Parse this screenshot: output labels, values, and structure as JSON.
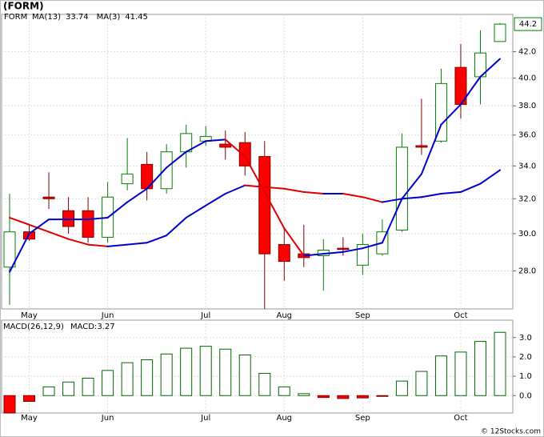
{
  "chart_data": [
    {
      "type": "candlestick",
      "title": "(FORM)",
      "symbol": "FORM",
      "categories": [
        null,
        "May",
        null,
        null,
        null,
        "Jun",
        null,
        null,
        null,
        null,
        "Jul",
        null,
        null,
        null,
        "Aug",
        null,
        null,
        null,
        "Sep",
        null,
        null,
        null,
        null,
        "Oct",
        null,
        null
      ],
      "open": [
        28.2,
        30.1,
        32.1,
        31.3,
        31.3,
        29.8,
        32.9,
        34.1,
        32.6,
        34.9,
        35.6,
        35.4,
        35.5,
        34.6,
        29.4,
        28.9,
        28.8,
        29.2,
        28.3,
        28.9,
        30.2,
        35.3,
        35.6,
        40.8,
        40.1,
        42.8
      ],
      "high": [
        32.3,
        30.5,
        33.6,
        32.1,
        32.1,
        33.0,
        35.8,
        34.9,
        35.4,
        36.7,
        36.6,
        36.3,
        36.2,
        35.6,
        30.3,
        30.5,
        29.7,
        29.8,
        30.0,
        30.8,
        36.1,
        38.5,
        40.7,
        42.6,
        43.7,
        44.3
      ],
      "low": [
        26.3,
        29.6,
        31.4,
        30.0,
        29.5,
        29.5,
        32.5,
        31.9,
        32.3,
        33.9,
        35.3,
        34.4,
        33.4,
        26.1,
        27.5,
        28.2,
        27.0,
        28.8,
        27.8,
        28.8,
        30.1,
        34.7,
        35.5,
        37.1,
        38.1,
        42.8
      ],
      "close": [
        30.1,
        29.7,
        32.0,
        30.4,
        29.8,
        32.1,
        33.5,
        32.6,
        34.9,
        36.1,
        35.9,
        35.2,
        34.0,
        28.9,
        28.5,
        28.7,
        29.1,
        29.15,
        29.4,
        30.1,
        35.2,
        35.2,
        39.6,
        38.1,
        41.9,
        44.2
      ],
      "up_color": "#008000",
      "down_color": "#ff0000",
      "series": [
        {
          "name": "MA(13)",
          "color": "#0000cc",
          "values": [
            30.9,
            30.5,
            30.1,
            29.7,
            29.4,
            29.3,
            29.4,
            29.5,
            29.9,
            30.9,
            31.6,
            32.3,
            32.8,
            32.7,
            32.6,
            32.4,
            32.3,
            32.3,
            32.1,
            31.8,
            32.0,
            32.1,
            32.3,
            32.4,
            32.9,
            33.74
          ]
        },
        {
          "name": "MA(3)",
          "color": "#0000cc",
          "values": [
            27.95,
            30.0,
            30.8,
            30.8,
            30.8,
            30.9,
            31.8,
            32.6,
            33.9,
            34.9,
            35.6,
            35.7,
            34.6,
            32.4,
            30.3,
            28.8,
            28.9,
            29.0,
            29.2,
            29.5,
            32.0,
            33.5,
            36.7,
            38.1,
            40.1,
            41.45
          ]
        }
      ],
      "falling_color": "#dd0000",
      "ylim": [
        26.1,
        45
      ],
      "log_scale": true,
      "grid": true,
      "yticks": [
        {
          "value": 28,
          "label": "28.0"
        },
        {
          "value": 30,
          "label": "30.0"
        },
        {
          "value": 32,
          "label": "32.0"
        },
        {
          "value": 34,
          "label": "34.0"
        },
        {
          "value": 36,
          "label": "36.0"
        },
        {
          "value": 38,
          "label": "38.0"
        },
        {
          "value": 40,
          "label": "40.0"
        },
        {
          "value": 42,
          "label": "42.0"
        }
      ]
    },
    {
      "type": "bar",
      "title": "MACD(26,12,9)",
      "value_name": "MACD:",
      "categories": [
        null,
        "May",
        null,
        null,
        null,
        "Jun",
        null,
        null,
        null,
        null,
        "Jul",
        null,
        null,
        null,
        "Aug",
        null,
        null,
        null,
        "Sep",
        null,
        null,
        null,
        null,
        "Oct",
        null,
        null
      ],
      "values": [
        -0.9,
        -0.3,
        0.45,
        0.7,
        0.9,
        1.3,
        1.7,
        1.85,
        2.15,
        2.45,
        2.55,
        2.4,
        2.1,
        1.15,
        0.45,
        0.1,
        -0.1,
        -0.15,
        -0.12,
        -0.04,
        0.75,
        1.25,
        2.05,
        2.25,
        2.8,
        3.27
      ],
      "color": "#006600",
      "negative_color": "#ff0000",
      "ylim": [
        -0.9,
        3.9
      ],
      "grid": true,
      "yticks": [
        {
          "value": 0,
          "label": "0.0"
        },
        {
          "value": 1,
          "label": "1.0"
        },
        {
          "value": 2,
          "label": "2.0"
        },
        {
          "value": 3,
          "label": "3.0"
        }
      ]
    }
  ],
  "footer": "© 12Stocks.com"
}
